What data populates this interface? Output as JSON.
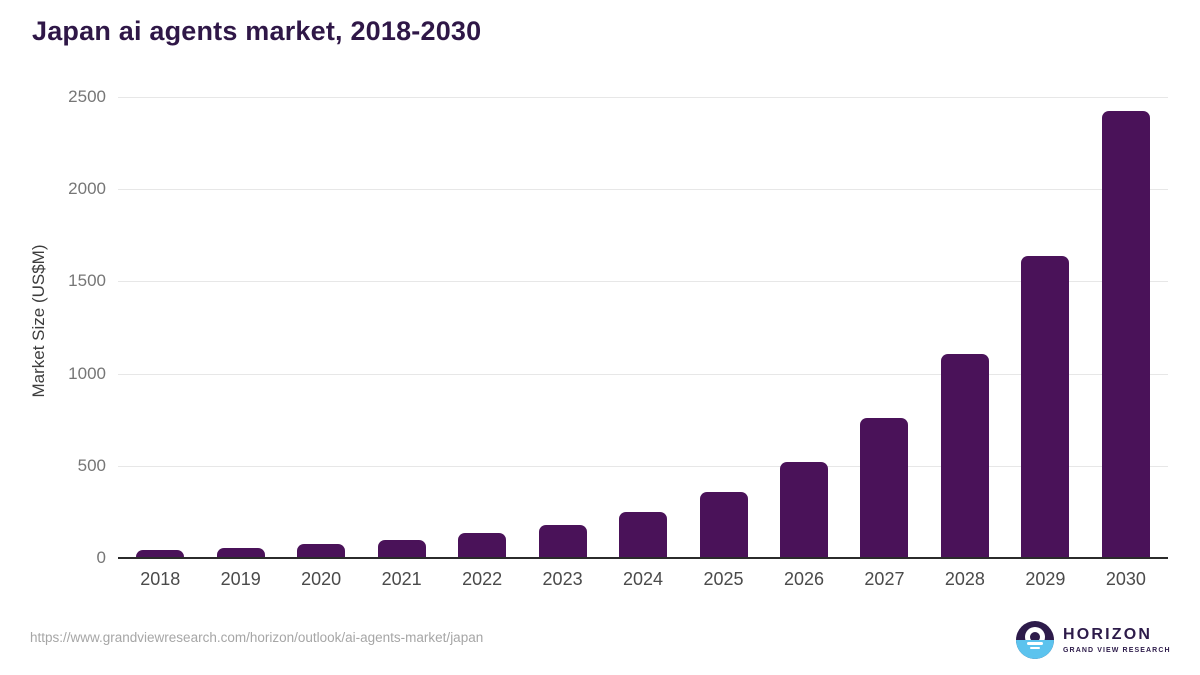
{
  "header": {
    "title": "Japan ai agents market, 2018-2030"
  },
  "chart_data": {
    "type": "bar",
    "title": "Japan ai agents market, 2018-2030",
    "categories": [
      "2018",
      "2019",
      "2020",
      "2021",
      "2022",
      "2023",
      "2024",
      "2025",
      "2026",
      "2027",
      "2028",
      "2029",
      "2030"
    ],
    "values": [
      42,
      56,
      76,
      100,
      133,
      180,
      251,
      360,
      520,
      757,
      1106,
      1636,
      2424
    ],
    "xlabel": "",
    "ylabel": "Market Size (US$M)",
    "ylim": [
      0,
      2500
    ],
    "yticks": [
      0,
      500,
      1000,
      1500,
      2000,
      2500
    ],
    "grid": true,
    "legend": false,
    "bar_color": "#4a1259"
  },
  "footer": {
    "source_url": "https://www.grandviewresearch.com/horizon/outlook/ai-agents-market/japan",
    "logo": {
      "brand": "HORIZON",
      "tagline": "GRAND VIEW RESEARCH",
      "icon": "horizon-sunset-icon",
      "icon_colors": {
        "purple": "#2d1b4a",
        "blue": "#5cc3ee",
        "sun": "#ffffff"
      }
    }
  },
  "colors": {
    "title_text": "#2f1747",
    "bar": "#4a1259",
    "axis_line": "#2b2b2b",
    "gridline": "#e7e7e7",
    "ytick_text": "#767676",
    "xtick_text": "#4a4a4a",
    "url_text": "#a6a6a6",
    "background": "#ffffff"
  }
}
